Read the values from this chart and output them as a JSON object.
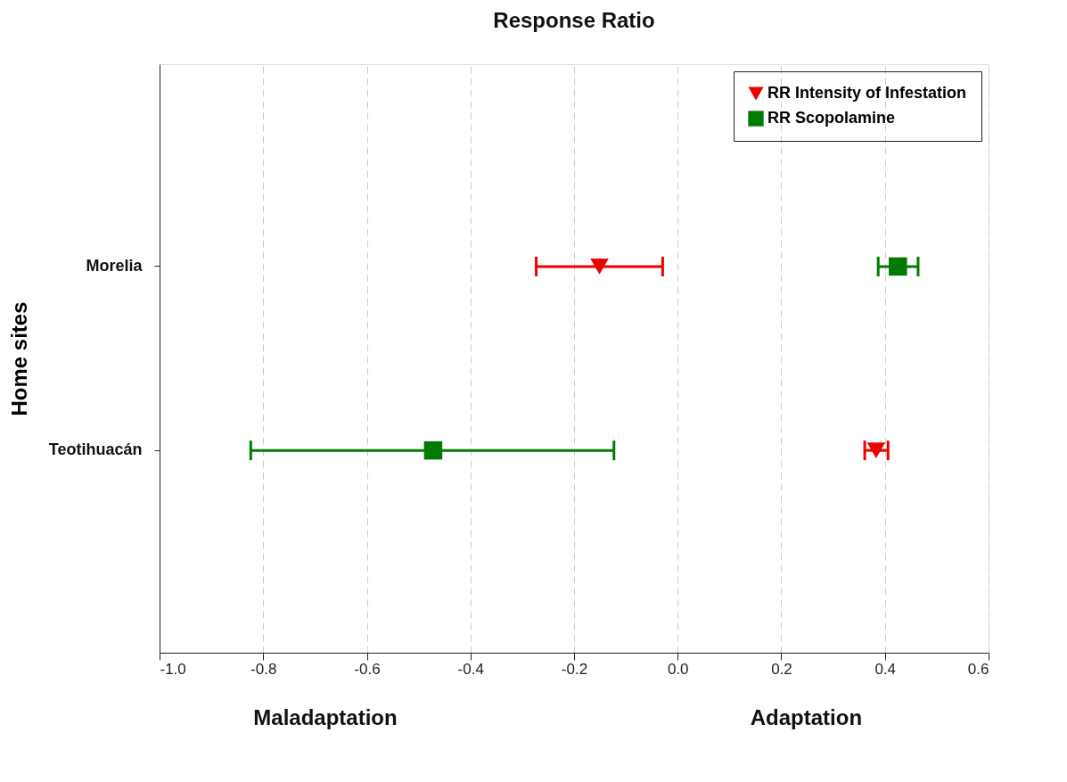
{
  "chart_data": {
    "type": "scatter",
    "title": "Response Ratio",
    "ylabel": "Home sites",
    "categories": [
      "Morelia",
      "Teotihuacán"
    ],
    "series": [
      {
        "name": "RR Intensity of Infestation",
        "color": "#ee0000",
        "marker": "triangle",
        "values": [
          -0.151,
          0.383
        ],
        "errors": [
          [
            -0.273,
            -0.029
          ],
          [
            0.361,
            0.406
          ]
        ]
      },
      {
        "name": "RR Scopolamine",
        "color": "#007a00",
        "marker": "square",
        "values": [
          0.425,
          -0.472
        ],
        "errors": [
          [
            0.387,
            0.464
          ],
          [
            -0.824,
            -0.123
          ]
        ]
      }
    ],
    "orientation": "horizontal",
    "xlim": [
      -1.0,
      0.6
    ],
    "xticks": [
      {
        "value": -1.0,
        "label": "-1.0"
      },
      {
        "value": -0.8,
        "label": "-0.8"
      },
      {
        "value": -0.6,
        "label": "-0.6"
      },
      {
        "value": -0.4,
        "label": "-0.4"
      },
      {
        "value": -0.2,
        "label": "-0.2"
      },
      {
        "value": 0.0,
        "label": "0.0"
      },
      {
        "value": 0.2,
        "label": "0.2"
      },
      {
        "value": 0.4,
        "label": "0.4"
      },
      {
        "value": 0.6,
        "label": "0.6"
      }
    ],
    "grid": "x",
    "legend": "top right",
    "annotations": [
      "Maladaptation",
      "Adaptation"
    ]
  }
}
